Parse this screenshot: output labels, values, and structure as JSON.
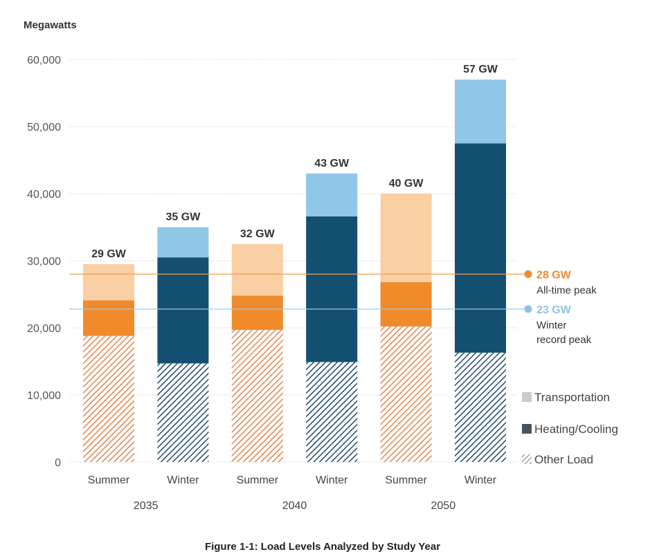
{
  "chart_data": {
    "type": "bar",
    "stacked": true,
    "unit_label": "Megawatts",
    "ylim": [
      0,
      60000
    ],
    "yticks": [
      "0",
      "10,000",
      "20,000",
      "30,000",
      "40,000",
      "50,000",
      "60,000"
    ],
    "grid": true,
    "categories": [
      "Summer",
      "Winter",
      "Summer",
      "Winter",
      "Summer",
      "Winter"
    ],
    "years": [
      "2035",
      "2040",
      "2050"
    ],
    "totals": [
      "29 GW",
      "35 GW",
      "32 GW",
      "43 GW",
      "40 GW",
      "57 GW"
    ],
    "series": [
      {
        "name": "Other Load",
        "values": [
          18800,
          14700,
          19700,
          14900,
          20200,
          16300
        ]
      },
      {
        "name": "Heating/Cooling",
        "values": [
          5300,
          15800,
          5100,
          21700,
          6600,
          31200
        ]
      },
      {
        "name": "Transportation",
        "values": [
          5400,
          4500,
          7700,
          6400,
          13200,
          9500
        ]
      }
    ],
    "reference_lines": [
      {
        "value": 28000,
        "label": "28 GW",
        "desc1": "All-time peak",
        "desc2": ""
      },
      {
        "value": 22800,
        "label": "23 GW",
        "desc1": "Winter",
        "desc2": "record peak"
      }
    ],
    "legend_position": "bottom-right",
    "caption": "Figure 1-1: Load Levels Analyzed by Study Year"
  },
  "colors": {
    "summer_transport": "#f9cfa3",
    "summer_heating": "#f08a2a",
    "summer_other": "#e0844a",
    "winter_transport": "#90c6e8",
    "winter_heating": "#134f70",
    "winter_other": "#1e4a6a",
    "peak_line": "#f0a050",
    "winter_line": "#9ccbea",
    "peak_text": "#f08a2a",
    "winter_text": "#8cc4e6",
    "legend_transport": "#c8cccf",
    "legend_heating": "#47545d",
    "legend_other": "#777777"
  },
  "legend": [
    {
      "label": "Transportation",
      "icon": "light-gray-square"
    },
    {
      "label": "Heating/Cooling",
      "icon": "dark-gray-square"
    },
    {
      "label": "Other Load",
      "icon": "hatched-square"
    }
  ]
}
